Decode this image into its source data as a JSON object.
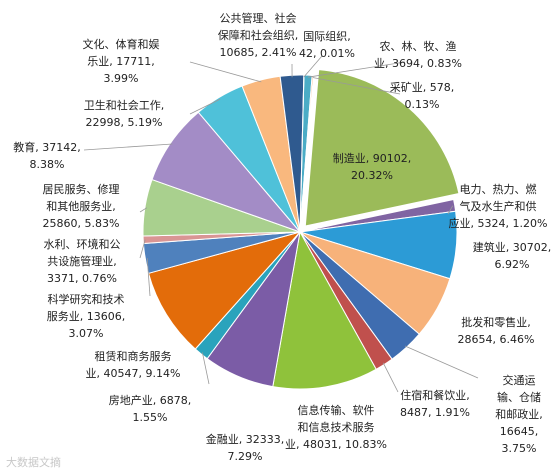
{
  "chart_data": {
    "type": "pie",
    "title": "",
    "slices": [
      {
        "name": "农、林、牧、渔业",
        "value": 3694,
        "percent": "0.83%",
        "color": "#4bacc6"
      },
      {
        "name": "采矿业",
        "value": 578,
        "percent": "0.13%",
        "color": "#f79646"
      },
      {
        "name": "制造业",
        "value": 90102,
        "percent": "20.32%",
        "color": "#9bbb59"
      },
      {
        "name": "电力、热力、燃气及水生产和供应业",
        "value": 5324,
        "percent": "1.20%",
        "color": "#8064a2"
      },
      {
        "name": "建筑业",
        "value": 30702,
        "percent": "6.92%",
        "color": "#2c9bd6"
      },
      {
        "name": "批发和零售业",
        "value": 28654,
        "percent": "6.46%",
        "color": "#f7b27a"
      },
      {
        "name": "交通运输、仓储和邮政业",
        "value": 16645,
        "percent": "3.75%",
        "color": "#3f6db0"
      },
      {
        "name": "住宿和餐饮业",
        "value": 8487,
        "percent": "1.91%",
        "color": "#c0504d"
      },
      {
        "name": "信息传输、软件和信息技术服务业",
        "value": 48031,
        "percent": "10.83%",
        "color": "#8fc23b"
      },
      {
        "name": "金融业",
        "value": 32333,
        "percent": "7.29%",
        "color": "#7b5ca6"
      },
      {
        "name": "房地产业",
        "value": 6878,
        "percent": "1.55%",
        "color": "#2aa3bc"
      },
      {
        "name": "租赁和商务服务业",
        "value": 40547,
        "percent": "9.14%",
        "color": "#e36c0a"
      },
      {
        "name": "科学研究和技术服务业",
        "value": 13606,
        "percent": "3.07%",
        "color": "#4f81bd"
      },
      {
        "name": "水利、环境和公共设施管理业",
        "value": 3371,
        "percent": "0.76%",
        "color": "#d99594"
      },
      {
        "name": "居民服务、修理和其他服务业",
        "value": 25860,
        "percent": "5.83%",
        "color": "#a9d08e"
      },
      {
        "name": "教育",
        "value": 37142,
        "percent": "8.38%",
        "color": "#a38cc6"
      },
      {
        "name": "卫生和社会工作",
        "value": 22998,
        "percent": "5.19%",
        "color": "#4fc1d9"
      },
      {
        "name": "文化、体育和娱乐业",
        "value": 17711,
        "percent": "3.99%",
        "color": "#f9b87e"
      },
      {
        "name": "公共管理、社会保障和社会组织",
        "value": 10685,
        "percent": "2.41%",
        "color": "#2f5a8f"
      },
      {
        "name": "国际组织",
        "value": 42,
        "percent": "0.01%",
        "color": "#b83b3b"
      }
    ],
    "labels": [
      {
        "lines": [
          "农、林、牧、渔",
          "业, 3694, 0.83%"
        ]
      },
      {
        "lines": [
          "采矿业, 578,",
          "0.13%"
        ]
      },
      {
        "lines": [
          "制造业, 90102,",
          "20.32%"
        ]
      },
      {
        "lines": [
          "电力、热力、燃",
          "气及水生产和供",
          "应业, 5324, 1.20%"
        ]
      },
      {
        "lines": [
          "建筑业, 30702,",
          "6.92%"
        ]
      },
      {
        "lines": [
          "批发和零售业,",
          "28654, 6.46%"
        ]
      },
      {
        "lines": [
          "交通运",
          "输、仓储",
          "和邮政业,",
          "16645,",
          "3.75%"
        ]
      },
      {
        "lines": [
          "住宿和餐饮业,",
          "8487, 1.91%"
        ]
      },
      {
        "lines": [
          "信息传输、软件",
          "和信息技术服务",
          "业, 48031, 10.83%"
        ]
      },
      {
        "lines": [
          "金融业, 32333,",
          "7.29%"
        ]
      },
      {
        "lines": [
          "房地产业, 6878,",
          "1.55%"
        ]
      },
      {
        "lines": [
          "租赁和商务服务",
          "业, 40547, 9.14%"
        ]
      },
      {
        "lines": [
          "科学研究和技术",
          "服务业, 13606,",
          "3.07%"
        ]
      },
      {
        "lines": [
          "水利、环境和公",
          "共设施管理业,",
          "3371, 0.76%"
        ]
      },
      {
        "lines": [
          "居民服务、修理",
          "和其他服务业,",
          "25860, 5.83%"
        ]
      },
      {
        "lines": [
          "教育, 37142,",
          "8.38%"
        ]
      },
      {
        "lines": [
          "卫生和社会工作,",
          "22998, 5.19%"
        ]
      },
      {
        "lines": [
          "文化、体育和娱",
          "乐业, 17711,",
          "3.99%"
        ]
      },
      {
        "lines": [
          "公共管理、社会",
          "保障和社会组织,",
          "10685, 2.41%"
        ]
      },
      {
        "lines": [
          "国际组织,",
          "42, 0.01%"
        ]
      }
    ],
    "legend": "none"
  },
  "watermark": "大数据文摘"
}
